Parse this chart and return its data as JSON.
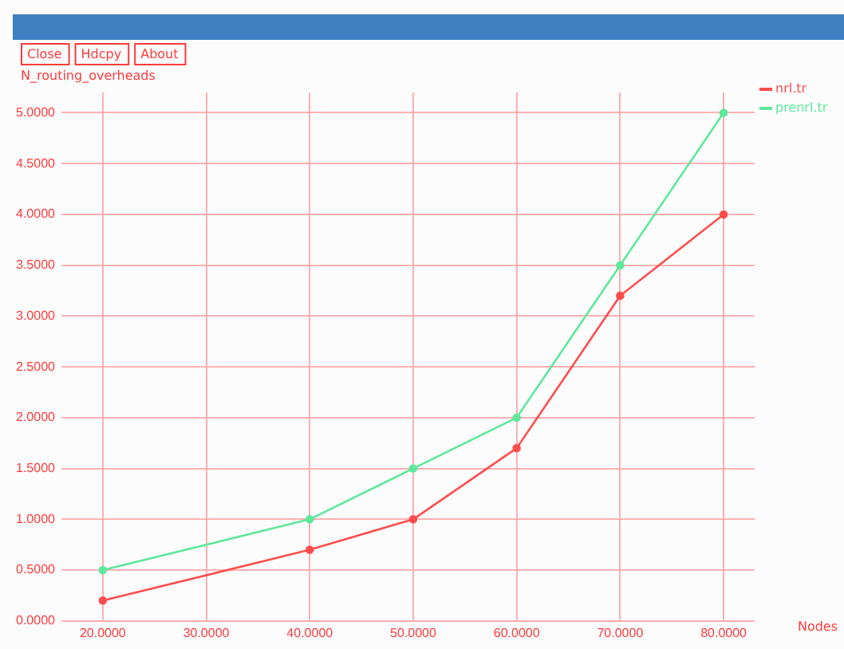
{
  "chart_data": {
    "type": "line",
    "ylabel": "N_routing_overheads",
    "xlabel": "Nodes",
    "annotations": [
      "Close",
      "Hdcpy",
      "About"
    ],
    "x": [
      20,
      40,
      50,
      60,
      70,
      80
    ],
    "series": [
      {
        "name": "nrl.tr",
        "color": "#ff4d4d",
        "values": [
          0.2,
          0.7,
          1.0,
          1.7,
          3.2,
          4.0
        ]
      },
      {
        "name": "prenrl.tr",
        "color": "#5ee89a",
        "values": [
          0.5,
          1.0,
          1.5,
          2.0,
          3.5,
          5.0
        ]
      }
    ],
    "xlim": [
      16,
      83
    ],
    "xticks": [
      {
        "value": 20,
        "label": "20.0000"
      },
      {
        "value": 30,
        "label": "30.0000"
      },
      {
        "value": 40,
        "label": "40.0000"
      },
      {
        "value": 50,
        "label": "50.0000"
      },
      {
        "value": 60,
        "label": "60.0000"
      },
      {
        "value": 70,
        "label": "70.0000"
      },
      {
        "value": 80,
        "label": "80.0000"
      }
    ],
    "ylim": [
      0,
      5.2
    ],
    "yticks": [
      {
        "value": 0,
        "label": "0.0000"
      },
      {
        "value": 0.5,
        "label": "0.5000"
      },
      {
        "value": 1,
        "label": "1.0000"
      },
      {
        "value": 1.5,
        "label": "1.5000"
      },
      {
        "value": 2,
        "label": "2.0000"
      },
      {
        "value": 2.5,
        "label": "2.5000"
      },
      {
        "value": 3,
        "label": "3.0000"
      },
      {
        "value": 3.5,
        "label": "3.5000"
      },
      {
        "value": 4,
        "label": "4.0000"
      },
      {
        "value": 4.5,
        "label": "4.5000"
      },
      {
        "value": 5,
        "label": "5.0000"
      }
    ],
    "grid": true,
    "legend": "top right",
    "marker": "circle",
    "line_style": "solid"
  }
}
